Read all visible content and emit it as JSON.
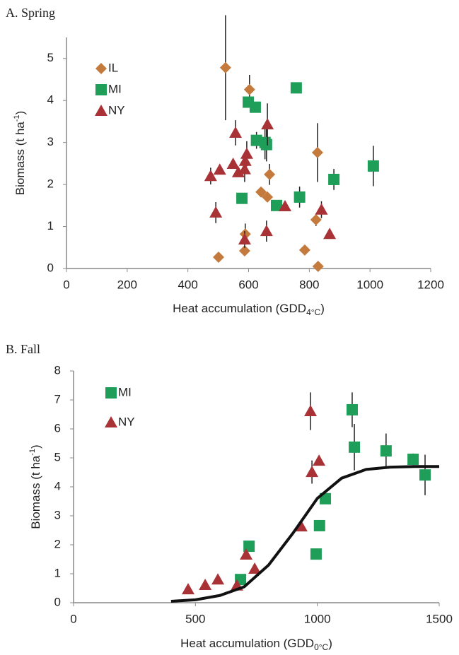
{
  "chart_data": [
    {
      "type": "scatter",
      "title": "A. Spring",
      "x_label": "Heat accumulation (GDD",
      "x_label_sub": "4°C",
      "x_label_end": ")",
      "y_label": "Biomass (t ha",
      "y_label_sup": "-1",
      "y_label_end": ")",
      "xlim": [
        0,
        1200
      ],
      "xticks": [
        0,
        200,
        400,
        600,
        800,
        1000,
        1200
      ],
      "ylim": [
        0,
        5.5
      ],
      "yticks": [
        0,
        1,
        2,
        3,
        4,
        5
      ],
      "series": [
        {
          "name": "IL",
          "color": "#c47a3c",
          "marker": "diamond",
          "x": [
            524,
            603,
            827,
            669,
            641,
            662,
            822,
            589,
            587,
            501,
            785,
            829
          ],
          "values": [
            4.78,
            4.26,
            2.76,
            2.24,
            1.82,
            1.7,
            1.16,
            0.82,
            0.42,
            0.27,
            0.44,
            0.05
          ],
          "errors": [
            1.25,
            0.35,
            0.7,
            0.25,
            null,
            null,
            0.15,
            0.25,
            null,
            null,
            null,
            null
          ]
        },
        {
          "name": "MI",
          "color": "#1f9e5a",
          "marker": "square",
          "x": [
            757,
            599,
            622,
            626,
            654,
            659,
            881,
            1011,
            768,
            578,
            692
          ],
          "values": [
            4.3,
            3.96,
            3.84,
            3.05,
            3.0,
            2.95,
            2.12,
            2.44,
            1.7,
            1.67,
            1.5
          ],
          "errors": [
            null,
            null,
            null,
            0.2,
            0.4,
            0.4,
            0.25,
            0.48,
            0.25,
            null,
            null
          ]
        },
        {
          "name": "NY",
          "color": "#a93237",
          "marker": "triangle",
          "x": [
            475,
            505,
            549,
            557,
            566,
            587,
            594,
            589,
            662,
            492,
            720,
            840,
            587,
            659,
            867
          ],
          "values": [
            2.2,
            2.35,
            2.49,
            3.23,
            2.29,
            2.36,
            2.73,
            2.56,
            3.43,
            1.33,
            1.48,
            1.4,
            0.69,
            0.89,
            0.82
          ],
          "errors": [
            0.2,
            null,
            null,
            0.3,
            null,
            0.3,
            0.3,
            null,
            0.5,
            0.25,
            null,
            0.2,
            0.2,
            0.25,
            null
          ]
        }
      ]
    },
    {
      "type": "scatter",
      "title": "B. Fall",
      "x_label": "Heat accumulation (GDD",
      "x_label_sub": "0°C",
      "x_label_end": ")",
      "y_label": "Biomass (t ha",
      "y_label_sup": "-1",
      "y_label_end": ")",
      "xlim": [
        0,
        1500
      ],
      "xticks": [
        0,
        500,
        1000,
        1500
      ],
      "ylim": [
        0,
        8
      ],
      "yticks": [
        0,
        1,
        2,
        3,
        4,
        5,
        6,
        7,
        8
      ],
      "series": [
        {
          "name": "MI",
          "color": "#1f9e5a",
          "marker": "square",
          "x": [
            685,
            720,
            995,
            1009,
            1033,
            1143,
            1152,
            1282,
            1393,
            1442
          ],
          "values": [
            0.8,
            1.95,
            1.68,
            2.66,
            3.59,
            6.66,
            5.37,
            5.24,
            4.95,
            4.41
          ],
          "errors": [
            null,
            null,
            null,
            null,
            null,
            0.6,
            0.8,
            0.6,
            0.2,
            0.7
          ]
        },
        {
          "name": "NY",
          "color": "#a93237",
          "marker": "triangle",
          "x": [
            470,
            540,
            592,
            670,
            708,
            743,
            934,
            972,
            978,
            1007
          ],
          "values": [
            0.46,
            0.61,
            0.8,
            0.59,
            1.66,
            1.17,
            2.63,
            6.61,
            4.51,
            4.9
          ],
          "errors": [
            null,
            null,
            null,
            null,
            null,
            null,
            null,
            0.65,
            0.4,
            null
          ]
        },
        {
          "color": "#111111",
          "marker": "line",
          "x": [
            400,
            500,
            600,
            700,
            800,
            900,
            1000,
            1100,
            1200,
            1300,
            1400,
            1500
          ],
          "values": [
            0.05,
            0.1,
            0.25,
            0.55,
            1.3,
            2.4,
            3.6,
            4.3,
            4.6,
            4.68,
            4.7,
            4.7
          ]
        }
      ]
    }
  ]
}
